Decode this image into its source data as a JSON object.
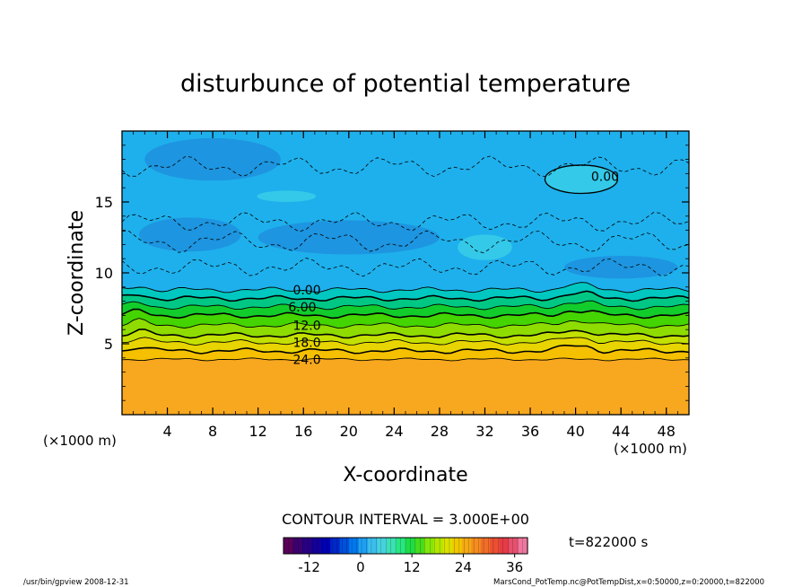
{
  "chart_data": {
    "type": "heatmap",
    "title": "disturbunce of potential temperature",
    "xlabel": "X-coordinate",
    "ylabel": "Z-coordinate",
    "x_unit_left": "(×1000 m)",
    "x_unit_right": "(×1000 m)",
    "xlim": [
      0,
      50
    ],
    "ylim": [
      0,
      20
    ],
    "x_ticks": [
      4,
      8,
      12,
      16,
      20,
      24,
      28,
      32,
      36,
      40,
      44,
      48
    ],
    "y_ticks": [
      5,
      10,
      15
    ],
    "layers": [
      {
        "z0": 0.0,
        "z1": 3.9,
        "value": 27,
        "color": "#f8a81e"
      },
      {
        "z0": 3.9,
        "z1": 4.5,
        "value": 24,
        "color": "#f5c000"
      },
      {
        "z0": 4.5,
        "z1": 5.1,
        "value": 21,
        "color": "#e8d400"
      },
      {
        "z0": 5.1,
        "z1": 5.6,
        "value": 18,
        "color": "#c4e000"
      },
      {
        "z0": 5.6,
        "z1": 6.3,
        "value": 15,
        "color": "#8edc00"
      },
      {
        "z0": 6.3,
        "z1": 7.0,
        "value": 12,
        "color": "#44d400"
      },
      {
        "z0": 7.0,
        "z1": 7.6,
        "value": 9,
        "color": "#12cc2c"
      },
      {
        "z0": 7.6,
        "z1": 8.2,
        "value": 6,
        "color": "#00c884"
      },
      {
        "z0": 8.2,
        "z1": 8.8,
        "value": 3,
        "color": "#00c8c0"
      },
      {
        "z0": 8.8,
        "z1": 20.0,
        "value": 0,
        "color": "#1eb0ec"
      }
    ],
    "contour_labels": [
      {
        "text": "0.00",
        "x": 16.3,
        "z": 8.8
      },
      {
        "text": "6.00",
        "x": 15.9,
        "z": 7.6
      },
      {
        "text": "12.0",
        "x": 16.3,
        "z": 6.3
      },
      {
        "text": "18.0",
        "x": 16.3,
        "z": 5.1
      },
      {
        "text": "24.0",
        "x": 16.3,
        "z": 3.9
      },
      {
        "text": "0.00",
        "x": 42.6,
        "z": 16.8
      }
    ],
    "contour_interval": "CONTOUR INTERVAL = 3.000E+00",
    "time": "t=822000 s",
    "colorbar": {
      "min": -18,
      "max": 39,
      "ticks": [
        -12,
        0,
        12,
        24,
        36
      ],
      "colors": [
        "#5a005a",
        "#3c006e",
        "#280082",
        "#14009a",
        "#0000b4",
        "#0028c8",
        "#0050dc",
        "#0078ec",
        "#1ea0f0",
        "#3cbeec",
        "#46d2dc",
        "#3ce0b4",
        "#28e680",
        "#1edc46",
        "#46dc1e",
        "#82e60a",
        "#b4e600",
        "#dce000",
        "#f0c800",
        "#f5aa14",
        "#f58c1e",
        "#f06e28",
        "#eb5032",
        "#e63c46",
        "#e6506e",
        "#f078a0"
      ]
    },
    "footer_left": "/usr/bin/gpview   2008-12-31",
    "footer_right": "MarsCond_PotTemp.nc@PotTempDist,x=0:50000,z=0:20000,t=822000"
  }
}
